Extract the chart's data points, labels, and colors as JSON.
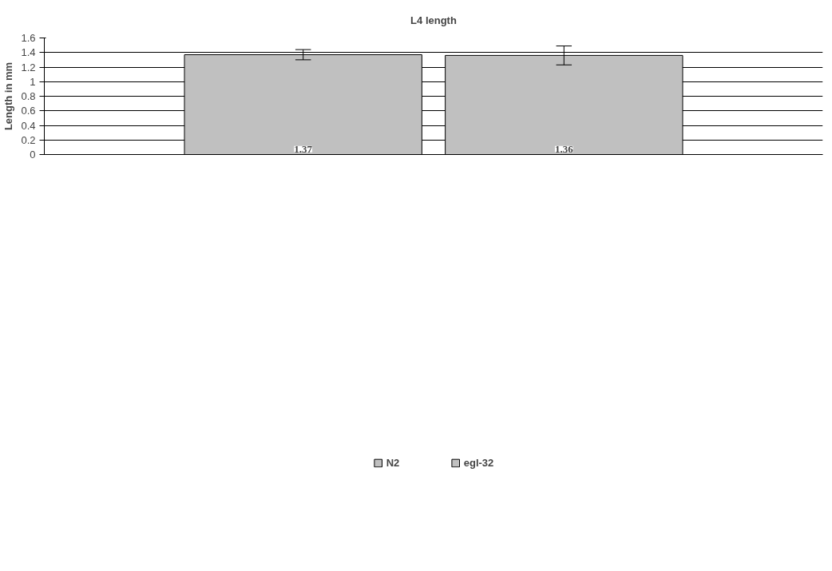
{
  "chart_data": {
    "type": "bar",
    "title": "L4 length",
    "ylabel": "Length in mm",
    "categories": [
      null
    ],
    "series": [
      {
        "name": "N2",
        "color": "#c0c0c0",
        "values": [
          1.37
        ],
        "errors": [
          0.07
        ]
      },
      {
        "name": "egl-32",
        "color": "#c0c0c0",
        "values": [
          1.36
        ],
        "errors": [
          0.13
        ]
      }
    ],
    "ylim": [
      0,
      1.6
    ],
    "yticks": [
      0,
      0.2,
      0.4,
      0.6,
      0.8,
      1,
      1.2,
      1.4,
      1.6
    ],
    "grid": "y",
    "legend": "bottom",
    "data_labels": true
  }
}
